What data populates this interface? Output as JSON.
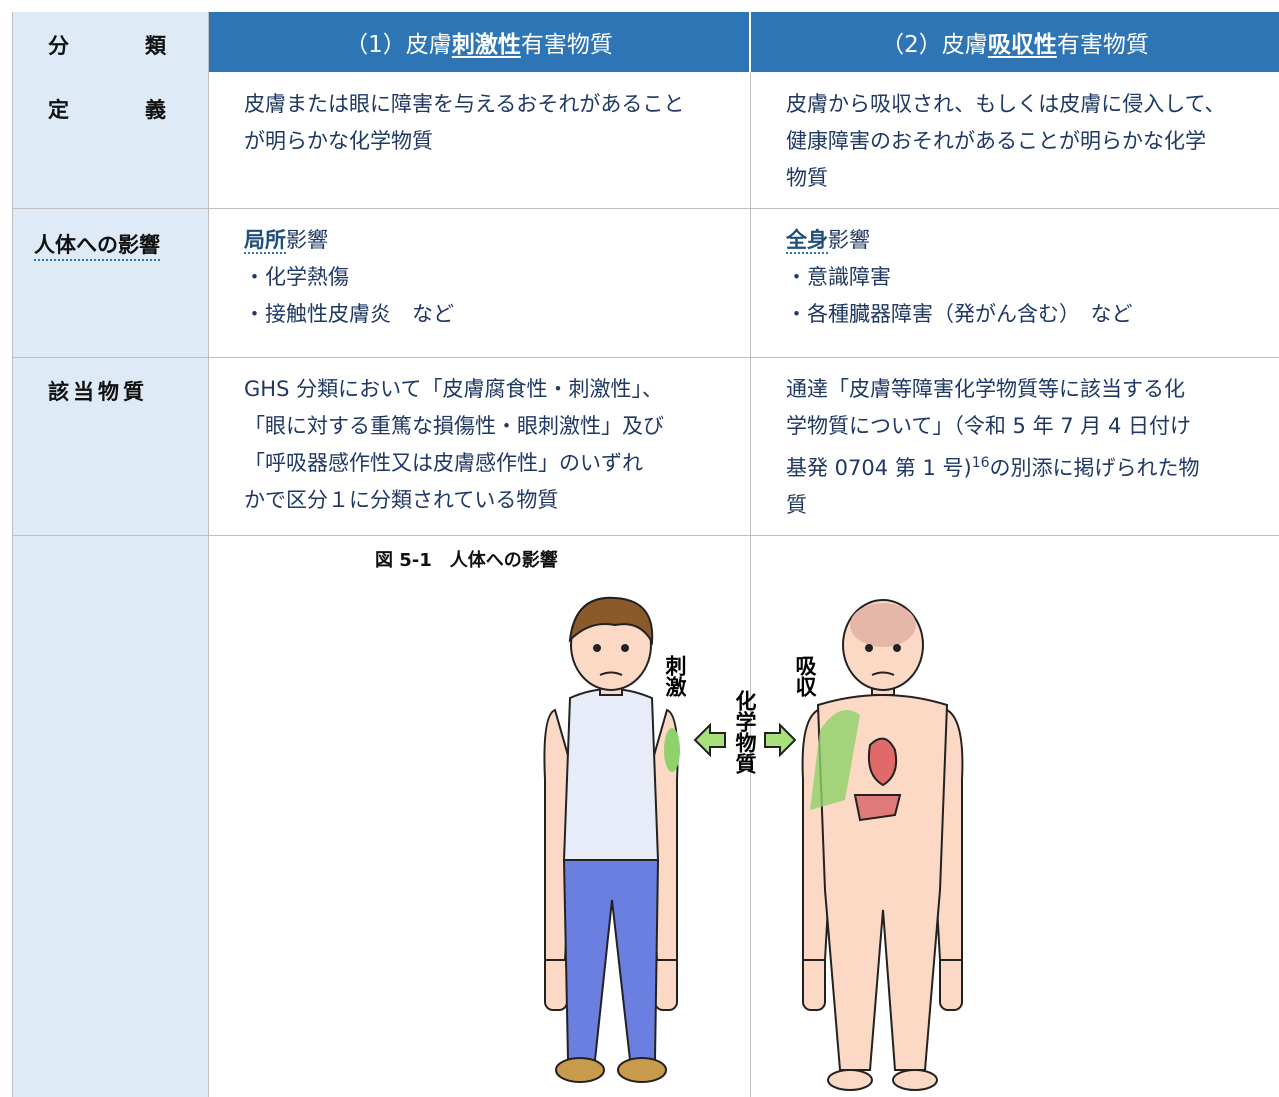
{
  "header": {
    "category": "分　類",
    "col1": {
      "pre": "（1）皮膚",
      "em": "刺激性",
      "post": "有害物質"
    },
    "col2": {
      "pre": "（2）皮膚",
      "em": "吸収性",
      "post": "有害物質"
    }
  },
  "rows": [
    {
      "label": "定　義",
      "col1": {
        "lines": [
          "皮膚または眼に障害を与えるおそれがあること",
          "が明らかな化学物質"
        ]
      },
      "col2": {
        "lines": [
          "皮膚から吸収され、もしくは皮膚に侵入して、",
          "健康障害のおそれがあることが明らかな化学",
          "物質"
        ]
      }
    },
    {
      "label": "人体への影響",
      "col1": {
        "em": "局所",
        "post": "影響",
        "items": [
          "・化学熱傷",
          "・接触性皮膚炎　など"
        ]
      },
      "col2": {
        "em": "全身",
        "post": "影響",
        "items": [
          "・意識障害",
          "・各種臓器障害（発がん含む）　など"
        ]
      }
    },
    {
      "label": "該当物質",
      "col1": {
        "lines": [
          "GHS 分類において「皮膚腐食性・刺激性」、",
          "「眼に対する重篤な損傷性・眼刺激性」及び",
          "「呼吸器感作性又は皮膚感作性」のいずれ",
          "かで区分１に分類されている物質"
        ]
      },
      "col2": {
        "lines": [
          "通達「皮膚等障害化学物質等に該当する化",
          "学物質について」（令和 5 年 7 月 4 日付け",
          {
            "pre": "基発 0704 第 1 号)",
            "sup": "16",
            "post": "の別添に掲げられた物"
          },
          "質"
        ]
      }
    }
  ],
  "figure": {
    "caption": "図 5-1　人体への影響",
    "label_irritation": "刺激",
    "label_absorption": "吸収",
    "label_chemical": "化学物質"
  }
}
